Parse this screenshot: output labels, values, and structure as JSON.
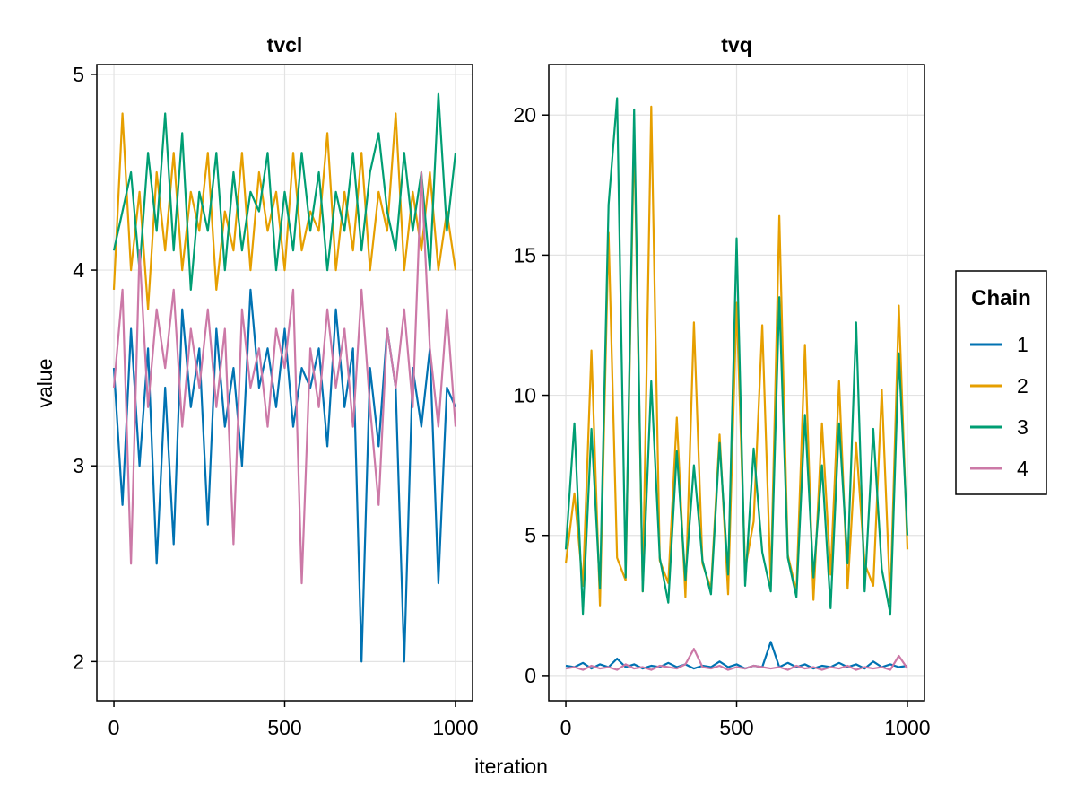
{
  "chart_data": {
    "type": "line",
    "xlabel": "iteration",
    "ylabel": "value",
    "legend": {
      "title": "Chain",
      "placement": "right",
      "entries": [
        {
          "name": "1",
          "color": "#0072b2"
        },
        {
          "name": "2",
          "color": "#e69f00"
        },
        {
          "name": "3",
          "color": "#009e73"
        },
        {
          "name": "4",
          "color": "#cc79a7"
        }
      ]
    },
    "panels": [
      {
        "title": "tvcl",
        "xlim": [
          -50,
          1050
        ],
        "ylim": [
          1.8,
          5.05
        ],
        "xticks": [
          0,
          500,
          1000
        ],
        "xtick_labels": [
          "0",
          "500",
          "1000"
        ],
        "yticks": [
          2,
          3,
          4,
          5
        ],
        "ytick_labels": [
          "2",
          "3",
          "4",
          "5"
        ],
        "grid": true,
        "series": [
          {
            "name": "1",
            "x": [
              0,
              25,
              50,
              75,
              100,
              125,
              150,
              175,
              200,
              225,
              250,
              275,
              300,
              325,
              350,
              375,
              400,
              425,
              450,
              475,
              500,
              525,
              550,
              575,
              600,
              625,
              650,
              675,
              700,
              725,
              750,
              775,
              800,
              825,
              850,
              875,
              900,
              925,
              950,
              975,
              1000
            ],
            "values": [
              3.5,
              2.8,
              3.7,
              3.0,
              3.6,
              2.5,
              3.4,
              2.6,
              3.8,
              3.3,
              3.6,
              2.7,
              3.7,
              3.2,
              3.5,
              3.0,
              3.9,
              3.4,
              3.6,
              3.3,
              3.7,
              3.2,
              3.5,
              3.4,
              3.6,
              3.1,
              3.8,
              3.3,
              3.6,
              2.0,
              3.5,
              3.1,
              3.7,
              3.4,
              2.0,
              3.5,
              3.2,
              3.6,
              2.4,
              3.4,
              3.3
            ]
          },
          {
            "name": "2",
            "x": [
              0,
              25,
              50,
              75,
              100,
              125,
              150,
              175,
              200,
              225,
              250,
              275,
              300,
              325,
              350,
              375,
              400,
              425,
              450,
              475,
              500,
              525,
              550,
              575,
              600,
              625,
              650,
              675,
              700,
              725,
              750,
              775,
              800,
              825,
              850,
              875,
              900,
              925,
              950,
              975,
              1000
            ],
            "values": [
              3.9,
              4.8,
              4.0,
              4.4,
              3.8,
              4.5,
              4.1,
              4.6,
              4.0,
              4.4,
              4.2,
              4.6,
              3.9,
              4.3,
              4.1,
              4.6,
              4.0,
              4.5,
              4.2,
              4.4,
              4.0,
              4.6,
              4.1,
              4.3,
              4.2,
              4.7,
              4.0,
              4.4,
              4.1,
              4.6,
              4.0,
              4.4,
              4.2,
              4.8,
              4.0,
              4.4,
              4.1,
              4.5,
              4.0,
              4.3,
              4.0
            ]
          },
          {
            "name": "3",
            "x": [
              0,
              25,
              50,
              75,
              100,
              125,
              150,
              175,
              200,
              225,
              250,
              275,
              300,
              325,
              350,
              375,
              400,
              425,
              450,
              475,
              500,
              525,
              550,
              575,
              600,
              625,
              650,
              675,
              700,
              725,
              750,
              775,
              800,
              825,
              850,
              875,
              900,
              925,
              950,
              975,
              1000
            ],
            "values": [
              4.1,
              4.3,
              4.5,
              4.0,
              4.6,
              4.2,
              4.8,
              4.1,
              4.7,
              3.9,
              4.4,
              4.2,
              4.6,
              4.0,
              4.5,
              4.1,
              4.4,
              4.3,
              4.6,
              4.0,
              4.4,
              4.1,
              4.6,
              4.2,
              4.5,
              4.0,
              4.4,
              4.2,
              4.6,
              4.1,
              4.5,
              4.7,
              4.3,
              4.1,
              4.6,
              4.2,
              4.5,
              4.0,
              4.9,
              4.2,
              4.6
            ]
          },
          {
            "name": "4",
            "x": [
              0,
              25,
              50,
              75,
              100,
              125,
              150,
              175,
              200,
              225,
              250,
              275,
              300,
              325,
              350,
              375,
              400,
              425,
              450,
              475,
              500,
              525,
              550,
              575,
              600,
              625,
              650,
              675,
              700,
              725,
              750,
              775,
              800,
              825,
              850,
              875,
              900,
              925,
              950,
              975,
              1000
            ],
            "values": [
              3.4,
              3.9,
              2.5,
              4.1,
              3.3,
              3.8,
              3.5,
              3.9,
              3.2,
              3.7,
              3.4,
              3.8,
              3.3,
              3.7,
              2.6,
              3.8,
              3.4,
              3.6,
              3.2,
              3.7,
              3.5,
              3.9,
              2.4,
              3.6,
              3.3,
              3.8,
              3.4,
              3.7,
              3.2,
              3.9,
              3.3,
              2.8,
              3.7,
              3.4,
              3.8,
              3.3,
              4.5,
              3.6,
              3.2,
              3.8,
              3.2
            ]
          }
        ]
      },
      {
        "title": "tvq",
        "xlim": [
          -50,
          1050
        ],
        "ylim": [
          -0.9,
          21.8
        ],
        "xticks": [
          0,
          500,
          1000
        ],
        "xtick_labels": [
          "0",
          "500",
          "1000"
        ],
        "yticks": [
          0,
          5,
          10,
          15,
          20
        ],
        "ytick_labels": [
          "0",
          "5",
          "10",
          "15",
          "20"
        ],
        "grid": true,
        "series": [
          {
            "name": "1",
            "x": [
              0,
              25,
              50,
              75,
              100,
              125,
              150,
              175,
              200,
              225,
              250,
              275,
              300,
              325,
              350,
              375,
              400,
              425,
              450,
              475,
              500,
              525,
              550,
              575,
              600,
              625,
              650,
              675,
              700,
              725,
              750,
              775,
              800,
              825,
              850,
              875,
              900,
              925,
              950,
              975,
              1000
            ],
            "values": [
              0.35,
              0.3,
              0.45,
              0.25,
              0.4,
              0.3,
              0.6,
              0.3,
              0.4,
              0.25,
              0.35,
              0.3,
              0.45,
              0.3,
              0.4,
              0.25,
              0.35,
              0.3,
              0.5,
              0.3,
              0.4,
              0.25,
              0.35,
              0.3,
              1.2,
              0.3,
              0.45,
              0.3,
              0.4,
              0.25,
              0.35,
              0.3,
              0.45,
              0.3,
              0.4,
              0.25,
              0.5,
              0.3,
              0.4,
              0.3,
              0.35
            ]
          },
          {
            "name": "2",
            "x": [
              0,
              25,
              50,
              75,
              100,
              125,
              150,
              175,
              200,
              225,
              250,
              275,
              300,
              325,
              350,
              375,
              400,
              425,
              450,
              475,
              500,
              525,
              550,
              575,
              600,
              625,
              650,
              675,
              700,
              725,
              750,
              775,
              800,
              825,
              850,
              875,
              900,
              925,
              950,
              975,
              1000
            ],
            "values": [
              4.0,
              6.5,
              3.2,
              11.6,
              2.5,
              15.8,
              4.2,
              3.4,
              19.5,
              3.0,
              20.3,
              4.1,
              3.3,
              9.2,
              2.8,
              12.6,
              4.0,
              3.1,
              8.6,
              2.9,
              13.3,
              3.8,
              5.5,
              12.5,
              3.2,
              16.4,
              4.3,
              3.0,
              11.8,
              2.7,
              9.0,
              3.6,
              10.5,
              3.1,
              8.3,
              4.0,
              3.2,
              10.2,
              2.6,
              13.2,
              4.5
            ]
          },
          {
            "name": "3",
            "x": [
              0,
              25,
              50,
              75,
              100,
              125,
              150,
              175,
              200,
              225,
              250,
              275,
              300,
              325,
              350,
              375,
              400,
              425,
              450,
              475,
              500,
              525,
              550,
              575,
              600,
              625,
              650,
              675,
              700,
              725,
              750,
              775,
              800,
              825,
              850,
              875,
              900,
              925,
              950,
              975,
              1000
            ],
            "values": [
              4.5,
              9.0,
              2.2,
              8.8,
              3.1,
              16.8,
              20.6,
              3.5,
              20.2,
              3.0,
              10.5,
              4.2,
              2.6,
              8.0,
              3.4,
              7.5,
              4.1,
              2.9,
              8.3,
              3.6,
              15.6,
              3.2,
              8.1,
              4.4,
              3.0,
              13.5,
              4.2,
              2.8,
              9.3,
              3.5,
              7.5,
              2.4,
              9.0,
              4.0,
              12.6,
              3.0,
              8.8,
              3.8,
              2.2,
              11.5,
              5.0
            ]
          },
          {
            "name": "4",
            "x": [
              0,
              25,
              50,
              75,
              100,
              125,
              150,
              175,
              200,
              225,
              250,
              275,
              300,
              325,
              350,
              375,
              400,
              425,
              450,
              475,
              500,
              525,
              550,
              575,
              600,
              625,
              650,
              675,
              700,
              725,
              750,
              775,
              800,
              825,
              850,
              875,
              900,
              925,
              950,
              975,
              1000
            ],
            "values": [
              0.25,
              0.3,
              0.2,
              0.35,
              0.25,
              0.3,
              0.2,
              0.4,
              0.25,
              0.3,
              0.2,
              0.35,
              0.3,
              0.25,
              0.4,
              0.95,
              0.3,
              0.25,
              0.35,
              0.2,
              0.3,
              0.25,
              0.35,
              0.3,
              0.25,
              0.3,
              0.2,
              0.35,
              0.25,
              0.3,
              0.2,
              0.3,
              0.25,
              0.35,
              0.2,
              0.3,
              0.25,
              0.3,
              0.2,
              0.7,
              0.25
            ]
          }
        ]
      }
    ]
  }
}
